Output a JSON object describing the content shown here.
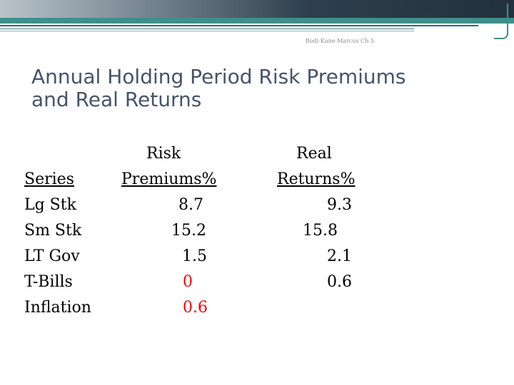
{
  "slide": {
    "source_note": "Bodi Kane Marcus Ch 5",
    "title_lines": [
      "Annual Holding Period Risk Premiums",
      "and Real Returns"
    ],
    "table": {
      "header_top": {
        "risk": "Risk",
        "real": "Real"
      },
      "header_bottom": {
        "series": "Series",
        "premiums": "Premiums%",
        "returns": "Returns%"
      },
      "rows": [
        {
          "series": "Lg Stk",
          "premium": "8.7",
          "real_return": "9.3"
        },
        {
          "series": "Sm Stk",
          "premium": "15.2",
          "real_return": "15.8"
        },
        {
          "series": "LT Gov",
          "premium": "1.5",
          "real_return": "2.1"
        },
        {
          "series": "T-Bills",
          "premium": "0",
          "real_return": "0.6"
        },
        {
          "series": "Inflation",
          "premium": "0.6",
          "real_return": ""
        }
      ]
    },
    "colors": {
      "title": "#44546a",
      "table_text": "#000000",
      "highlight": "#ff0000",
      "accent": "#3f8f8d"
    }
  }
}
